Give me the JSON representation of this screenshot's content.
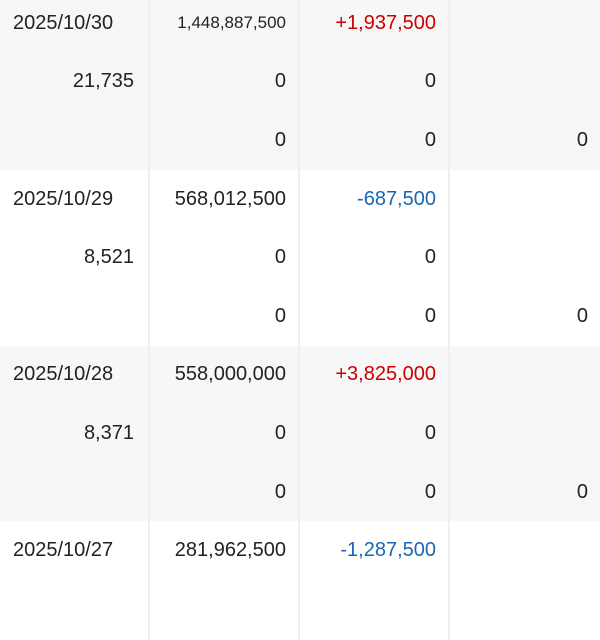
{
  "records": [
    {
      "date": "2025/10/30",
      "amount": "1,448,887,500",
      "change": "+1,937,500",
      "direction": "up",
      "volume": "21,735",
      "sub1_a": "0",
      "sub1_b": "0",
      "sub2_a": "0",
      "sub2_b": "0",
      "sub2_c": "0"
    },
    {
      "date": "2025/10/29",
      "amount": "568,012,500",
      "change": "-687,500",
      "direction": "down",
      "volume": "8,521",
      "sub1_a": "0",
      "sub1_b": "0",
      "sub2_a": "0",
      "sub2_b": "0",
      "sub2_c": "0"
    },
    {
      "date": "2025/10/28",
      "amount": "558,000,000",
      "change": "+3,825,000",
      "direction": "up",
      "volume": "8,371",
      "sub1_a": "0",
      "sub1_b": "0",
      "sub2_a": "0",
      "sub2_b": "0",
      "sub2_c": "0"
    },
    {
      "date": "2025/10/27",
      "amount": "281,962,500",
      "change": "-1,287,500",
      "direction": "down"
    }
  ],
  "colors": {
    "up": "#cc0000",
    "down": "#1a66b3",
    "shade": "#f7f7f7"
  }
}
